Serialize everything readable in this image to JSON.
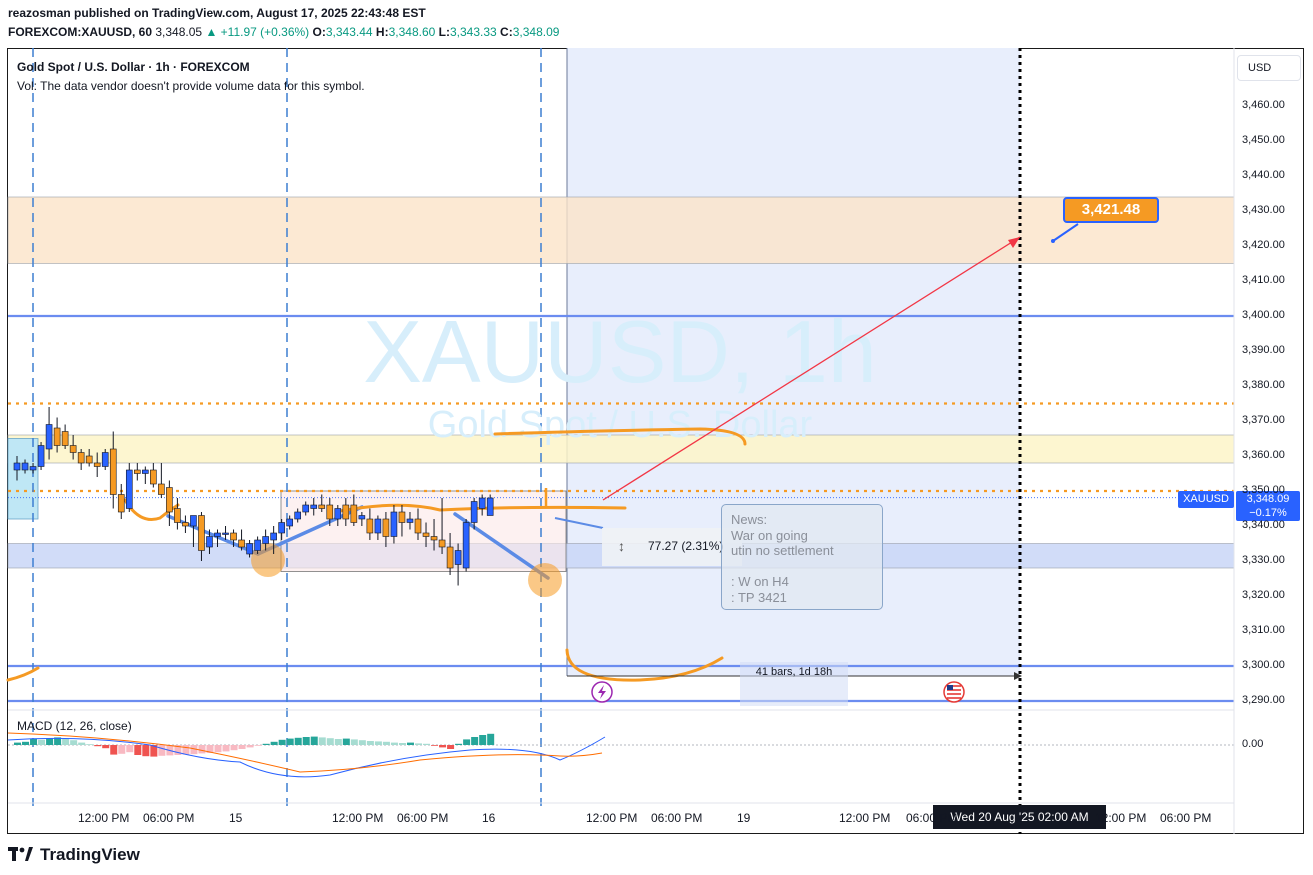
{
  "header": {
    "publisher_line": "reazosman published on TradingView.com, August 17, 2025 22:43:48 EST",
    "symbol": "FOREXCOM:XAUUSD, 60",
    "last": "3,348.05",
    "change": "+11.97 (+0.36%)",
    "open_label": "O:",
    "open": "3,343.44",
    "high_label": "H:",
    "high": "3,348.60",
    "low_label": "L:",
    "low": "3,343.33",
    "close_label": "C:",
    "close": "3,348.09"
  },
  "legend": {
    "title": "Gold Spot / U.S. Dollar · 1h · FOREXCOM",
    "vol_note": "Vol: The data vendor doesn't provide volume data for this symbol."
  },
  "watermark": {
    "symbol": "XAUUSD, 1h",
    "name": "Gold Spot / U.S. Dollar"
  },
  "currency_button": "USD",
  "price_tags": {
    "symbol": "XAUUSD",
    "price": "3,348.09",
    "change": "−0.17%"
  },
  "date_tag": "Wed 20 Aug '25   02:00 AM",
  "annotations": {
    "target_label": "3,421.48",
    "measure": "77.27 (2.31%)",
    "bars_range": "41 bars, 1d 18h",
    "news_lines": [
      "News:",
      "War on going",
      "utin no settlement",
      "",
      ": W on H4",
      ": TP 3421"
    ]
  },
  "macd_label": "MACD (12, 26, close)",
  "brand": "TradingView",
  "colors": {
    "bull": "#2962ff",
    "bear": "#f59a23",
    "accent": "#2962ff",
    "target": "#f59a23",
    "projection": "#f23645"
  },
  "chart_data": [
    {
      "type": "candlestick",
      "ylabels": [
        "3,460.00",
        "3,450.00",
        "3,440.00",
        "3,430.00",
        "3,420.00",
        "3,410.00",
        "3,400.00",
        "3,390.00",
        "3,380.00",
        "3,370.00",
        "3,360.00",
        "3,350.00",
        "3,340.00",
        "3,330.00",
        "3,320.00",
        "3,310.00",
        "3,300.00",
        "3,290.00"
      ],
      "yvalues": [
        3460,
        3450,
        3440,
        3430,
        3420,
        3410,
        3400,
        3390,
        3380,
        3370,
        3360,
        3350,
        3340,
        3330,
        3320,
        3310,
        3300,
        3290
      ],
      "ylim": [
        3287,
        3470
      ],
      "xlabels": [
        "12:00 PM",
        "06:00 PM",
        "15",
        "12:00 PM",
        "06:00 PM",
        "16",
        "12:00 PM",
        "06:00 PM",
        "19",
        "12:00 PM",
        "06:00 PM",
        "12:00 PM",
        "06:00 PM"
      ],
      "candles": [
        {
          "o": 3356,
          "h": 3360,
          "l": 3353,
          "c": 3358
        },
        {
          "o": 3356,
          "h": 3359,
          "l": 3355,
          "c": 3358
        },
        {
          "o": 3356,
          "h": 3358,
          "l": 3355,
          "c": 3357
        },
        {
          "o": 3357,
          "h": 3364,
          "l": 3356,
          "c": 3363
        },
        {
          "o": 3362,
          "h": 3374,
          "l": 3359,
          "c": 3369
        },
        {
          "o": 3368,
          "h": 3371,
          "l": 3361,
          "c": 3363
        },
        {
          "o": 3367,
          "h": 3369,
          "l": 3362,
          "c": 3363
        },
        {
          "o": 3363,
          "h": 3366,
          "l": 3359,
          "c": 3361
        },
        {
          "o": 3361,
          "h": 3362,
          "l": 3356,
          "c": 3358
        },
        {
          "o": 3360,
          "h": 3362,
          "l": 3357,
          "c": 3358
        },
        {
          "o": 3358,
          "h": 3361,
          "l": 3354,
          "c": 3357
        },
        {
          "o": 3357,
          "h": 3362,
          "l": 3356,
          "c": 3361
        },
        {
          "o": 3362,
          "h": 3367,
          "l": 3345,
          "c": 3349
        },
        {
          "o": 3349,
          "h": 3352,
          "l": 3342,
          "c": 3344
        },
        {
          "o": 3345,
          "h": 3358,
          "l": 3344,
          "c": 3356
        },
        {
          "o": 3356,
          "h": 3358,
          "l": 3353,
          "c": 3355
        },
        {
          "o": 3355,
          "h": 3357,
          "l": 3352,
          "c": 3356
        },
        {
          "o": 3356,
          "h": 3358,
          "l": 3351,
          "c": 3352
        },
        {
          "o": 3352,
          "h": 3358,
          "l": 3348,
          "c": 3349
        },
        {
          "o": 3351,
          "h": 3353,
          "l": 3340,
          "c": 3344
        },
        {
          "o": 3345,
          "h": 3348,
          "l": 3339,
          "c": 3341
        },
        {
          "o": 3341,
          "h": 3343,
          "l": 3338,
          "c": 3340
        },
        {
          "o": 3340,
          "h": 3343,
          "l": 3334,
          "c": 3343
        },
        {
          "o": 3343,
          "h": 3344,
          "l": 3330,
          "c": 3333
        },
        {
          "o": 3334,
          "h": 3339,
          "l": 3332,
          "c": 3337
        },
        {
          "o": 3337,
          "h": 3339,
          "l": 3334,
          "c": 3338
        },
        {
          "o": 3338,
          "h": 3340,
          "l": 3336,
          "c": 3338
        },
        {
          "o": 3338,
          "h": 3339,
          "l": 3334,
          "c": 3336
        },
        {
          "o": 3336,
          "h": 3339,
          "l": 3333,
          "c": 3334
        },
        {
          "o": 3332,
          "h": 3336,
          "l": 3331,
          "c": 3335
        },
        {
          "o": 3333,
          "h": 3337,
          "l": 3332,
          "c": 3336
        },
        {
          "o": 3335,
          "h": 3339,
          "l": 3333,
          "c": 3337
        },
        {
          "o": 3336,
          "h": 3340,
          "l": 3332,
          "c": 3338
        },
        {
          "o": 3338,
          "h": 3342,
          "l": 3336,
          "c": 3341
        },
        {
          "o": 3340,
          "h": 3343,
          "l": 3339,
          "c": 3342
        },
        {
          "o": 3342,
          "h": 3345,
          "l": 3341,
          "c": 3344
        },
        {
          "o": 3344,
          "h": 3347,
          "l": 3343,
          "c": 3346
        },
        {
          "o": 3345,
          "h": 3348,
          "l": 3343,
          "c": 3346
        },
        {
          "o": 3346,
          "h": 3349,
          "l": 3344,
          "c": 3345
        },
        {
          "o": 3346,
          "h": 3348,
          "l": 3340,
          "c": 3342
        },
        {
          "o": 3342,
          "h": 3346,
          "l": 3340,
          "c": 3345
        },
        {
          "o": 3346,
          "h": 3348,
          "l": 3340,
          "c": 3342
        },
        {
          "o": 3346,
          "h": 3349,
          "l": 3340,
          "c": 3341
        },
        {
          "o": 3342,
          "h": 3344,
          "l": 3340,
          "c": 3343
        },
        {
          "o": 3342,
          "h": 3345,
          "l": 3336,
          "c": 3338
        },
        {
          "o": 3338,
          "h": 3343,
          "l": 3336,
          "c": 3342
        },
        {
          "o": 3342,
          "h": 3344,
          "l": 3334,
          "c": 3337
        },
        {
          "o": 3337,
          "h": 3346,
          "l": 3335,
          "c": 3344
        },
        {
          "o": 3344,
          "h": 3346,
          "l": 3337,
          "c": 3341
        },
        {
          "o": 3341,
          "h": 3344,
          "l": 3339,
          "c": 3342
        },
        {
          "o": 3342,
          "h": 3345,
          "l": 3336,
          "c": 3338
        },
        {
          "o": 3338,
          "h": 3341,
          "l": 3334,
          "c": 3337
        },
        {
          "o": 3337,
          "h": 3342,
          "l": 3333,
          "c": 3336
        },
        {
          "o": 3336,
          "h": 3348,
          "l": 3332,
          "c": 3334
        },
        {
          "o": 3334,
          "h": 3338,
          "l": 3326,
          "c": 3328
        },
        {
          "o": 3329,
          "h": 3335,
          "l": 3323,
          "c": 3333
        },
        {
          "o": 3328,
          "h": 3342,
          "l": 3327,
          "c": 3341
        },
        {
          "o": 3341,
          "h": 3348,
          "l": 3339,
          "c": 3347
        },
        {
          "o": 3345,
          "h": 3349,
          "l": 3343,
          "c": 3348
        },
        {
          "o": 3343,
          "h": 3349,
          "l": 3343,
          "c": 3348
        }
      ]
    },
    {
      "type": "bar",
      "name": "MACD (12, 26, close)",
      "ylabels": [
        "0.00"
      ],
      "histogram": [
        0.6,
        0.8,
        1.5,
        1.3,
        1.7,
        1.9,
        1.6,
        1.2,
        0.6,
        0.2,
        -0.3,
        -0.8,
        -2.4,
        -2.2,
        -1.8,
        -2.5,
        -2.8,
        -2.9,
        -2.7,
        -2.6,
        -2.5,
        -2.4,
        -2.3,
        -2.1,
        -2.0,
        -1.8,
        -1.6,
        -1.3,
        -1.0,
        -0.6,
        -0.2,
        0.3,
        0.8,
        1.3,
        1.6,
        1.8,
        2.0,
        2.1,
        1.9,
        1.7,
        1.5,
        1.6,
        1.4,
        1.2,
        1.0,
        0.9,
        0.8,
        0.6,
        0.5,
        0.6,
        0.4,
        0.3,
        -0.2,
        -0.6,
        -1.0,
        0.3,
        1.4,
        2.0,
        2.5,
        2.8
      ]
    }
  ]
}
